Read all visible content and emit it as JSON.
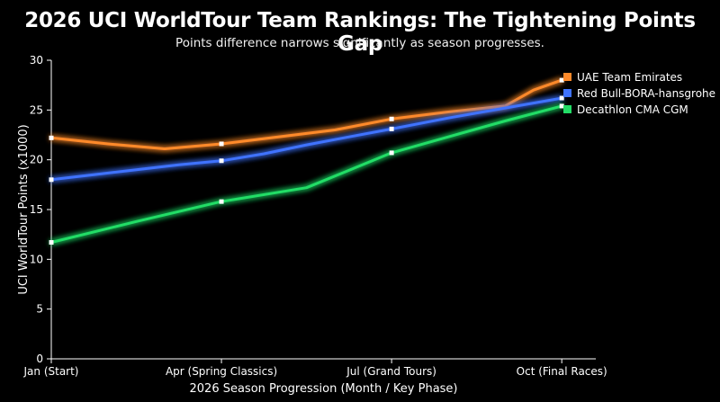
{
  "chart_data": {
    "type": "line",
    "title": "2026 UCI WorldTour Team Rankings: The Tightening Points Gap",
    "subtitle": "Points difference narrows significantly as season progresses.",
    "xlabel": "2026 Season Progression (Month / Key Phase)",
    "ylabel": "UCI WorldTour Points (x1000)",
    "x_tick_labels": [
      "Jan (Start)",
      "Apr (Spring Classics)",
      "Jul (Grand Tours)",
      "Oct (Final Races)"
    ],
    "x": [
      0,
      1,
      2,
      3,
      4,
      5,
      6,
      7,
      8,
      9
    ],
    "x_ticks_at": [
      0,
      3,
      6,
      9
    ],
    "xlim": [
      0,
      9.6
    ],
    "ylim": [
      0,
      30
    ],
    "y_ticks": [
      0,
      5,
      10,
      15,
      20,
      25,
      30
    ],
    "grid": false,
    "legend_position": "top-right",
    "series": [
      {
        "name": "UAE Team Emirates",
        "color": "#ff8a2a",
        "values": [
          22.2,
          21.6,
          21.1,
          21.6,
          22.3,
          23.0,
          24.1,
          24.8,
          25.4,
          27.0,
          28.0
        ],
        "x": [
          0,
          1,
          2,
          3,
          4,
          5,
          6,
          7,
          8,
          8.5,
          9
        ],
        "markers_at": [
          0,
          3,
          6,
          9
        ]
      },
      {
        "name": "Red Bull-BORA-hansgrohe",
        "color": "#3f73ff",
        "values": [
          18.0,
          18.5,
          19.0,
          19.5,
          19.9,
          20.6,
          21.5,
          22.3,
          23.1,
          24.2,
          25.2,
          26.2
        ],
        "x": [
          0,
          0.75,
          1.5,
          2.25,
          3,
          3.75,
          4.5,
          5.25,
          6,
          7,
          8,
          9
        ],
        "markers_at": [
          0,
          3,
          6,
          9
        ]
      },
      {
        "name": "Decathlon CMA CGM",
        "color": "#22dd66",
        "values": [
          11.7,
          13.8,
          15.8,
          17.2,
          20.7,
          22.3,
          23.9,
          25.4
        ],
        "x": [
          0,
          1.5,
          3,
          4.5,
          6,
          7,
          8,
          9
        ],
        "markers_at": [
          0,
          3,
          6,
          9
        ]
      }
    ]
  }
}
